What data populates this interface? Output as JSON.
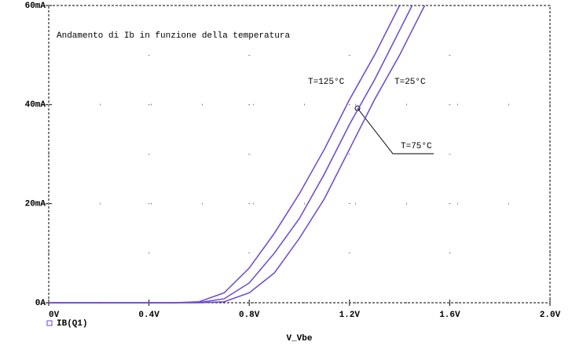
{
  "chart_data": {
    "type": "line",
    "annotation": "Andamento di Ib  in funzione della temperatura",
    "xlabel": "V_Vbe",
    "x": [
      0,
      0.4,
      0.5,
      0.6,
      0.7,
      0.8,
      0.9,
      1.0,
      1.1,
      1.2,
      1.3,
      1.4,
      1.45,
      1.5
    ],
    "series": [
      {
        "name": "T=125°C",
        "color": "#6b45d6",
        "values": [
          0,
          0,
          0,
          0.2,
          2,
          7,
          14,
          22,
          31,
          41,
          50,
          60,
          null,
          null
        ]
      },
      {
        "name": "T=75°C",
        "color": "#6b45d6",
        "values": [
          0,
          0,
          0,
          0.05,
          0.8,
          4,
          10,
          17,
          26,
          36,
          45,
          55,
          60,
          null
        ]
      },
      {
        "name": "T=25°C",
        "color": "#6b45d6",
        "values": [
          0,
          0,
          0,
          0,
          0.2,
          2,
          6,
          13,
          21,
          31,
          41,
          50,
          55,
          60
        ]
      }
    ],
    "legend": "IB(Q1)",
    "xlim": [
      0,
      2.0
    ],
    "xticks": [
      {
        "value": 0,
        "label": "0V"
      },
      {
        "value": 0.4,
        "label": "0.4V"
      },
      {
        "value": 0.8,
        "label": "0.8V"
      },
      {
        "value": 1.2,
        "label": "1.2V"
      },
      {
        "value": 1.6,
        "label": "1.6V"
      },
      {
        "value": 2.0,
        "label": "2.0V"
      }
    ],
    "ylim": [
      0,
      60
    ],
    "yticks": [
      {
        "value": 0,
        "label": "0A"
      },
      {
        "value": 20,
        "label": "20mA"
      },
      {
        "value": 40,
        "label": "40mA"
      },
      {
        "value": 60,
        "label": "60mA"
      }
    ],
    "grid": true
  }
}
